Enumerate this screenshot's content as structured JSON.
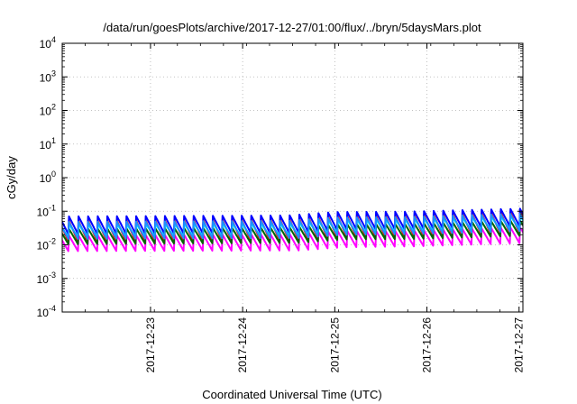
{
  "chart_data": {
    "type": "line",
    "title": "/data/run/goesPlots/archive/2017-12-27/01:00/flux/../bryn/5daysMars.plot",
    "xlabel": "Coordinated Universal Time (UTC)",
    "ylabel": "cGy/day",
    "yscale": "log",
    "ylim": [
      0.0001,
      10000
    ],
    "y_ticks": [
      {
        "base": "10",
        "exp": "-4",
        "value": 0.0001
      },
      {
        "base": "10",
        "exp": "-3",
        "value": 0.001
      },
      {
        "base": "10",
        "exp": "-2",
        "value": 0.01
      },
      {
        "base": "10",
        "exp": "-1",
        "value": 0.1
      },
      {
        "base": "10",
        "exp": "0",
        "value": 1
      },
      {
        "base": "10",
        "exp": "1",
        "value": 10
      },
      {
        "base": "10",
        "exp": "2",
        "value": 100
      },
      {
        "base": "10",
        "exp": "3",
        "value": 1000
      },
      {
        "base": "10",
        "exp": "4",
        "value": 10000
      }
    ],
    "xlim": [
      "2017-12-22 01:00",
      "2017-12-27 01:00"
    ],
    "x_ticks": [
      "2017-12-23",
      "2017-12-24",
      "2017-12-25",
      "2017-12-26",
      "2017-12-27"
    ],
    "grid": true,
    "sawtooth_period_hours": 2.5,
    "series": [
      {
        "color": "#ff00ff",
        "levels": [
          {
            "x": "2017-12-22 01:00",
            "peak": 0.019,
            "trough": 0.0065
          },
          {
            "x": "2017-12-24 12:00",
            "peak": 0.021,
            "trough": 0.0068
          },
          {
            "x": "2017-12-25 00:00",
            "peak": 0.026,
            "trough": 0.0085
          },
          {
            "x": "2017-12-25 18:00",
            "peak": 0.026,
            "trough": 0.009
          },
          {
            "x": "2017-12-27 01:00",
            "peak": 0.034,
            "trough": 0.0115
          }
        ]
      },
      {
        "color": "#ff0000",
        "levels": [
          {
            "x": "2017-12-22 01:00",
            "peak": 0.052,
            "trough": 0.0125
          },
          {
            "x": "2017-12-24 12:00",
            "peak": 0.057,
            "trough": 0.0135
          },
          {
            "x": "2017-12-25 00:00",
            "peak": 0.072,
            "trough": 0.017
          },
          {
            "x": "2017-12-25 18:00",
            "peak": 0.074,
            "trough": 0.018
          },
          {
            "x": "2017-12-27 01:00",
            "peak": 0.095,
            "trough": 0.023
          }
        ]
      },
      {
        "color": "#006400",
        "levels": [
          {
            "x": "2017-12-22 01:00",
            "peak": 0.03,
            "trough": 0.0105
          },
          {
            "x": "2017-12-24 12:00",
            "peak": 0.033,
            "trough": 0.0115
          },
          {
            "x": "2017-12-25 00:00",
            "peak": 0.041,
            "trough": 0.0145
          },
          {
            "x": "2017-12-25 18:00",
            "peak": 0.042,
            "trough": 0.015
          },
          {
            "x": "2017-12-27 01:00",
            "peak": 0.054,
            "trough": 0.019
          }
        ]
      },
      {
        "color": "#00ffff",
        "levels": [
          {
            "x": "2017-12-22 01:00",
            "peak": 0.04,
            "trough": 0.0175
          },
          {
            "x": "2017-12-24 12:00",
            "peak": 0.043,
            "trough": 0.019
          },
          {
            "x": "2017-12-25 00:00",
            "peak": 0.054,
            "trough": 0.024
          },
          {
            "x": "2017-12-25 18:00",
            "peak": 0.056,
            "trough": 0.025
          },
          {
            "x": "2017-12-27 01:00",
            "peak": 0.072,
            "trough": 0.031
          }
        ]
      },
      {
        "color": "#0000ff",
        "levels": [
          {
            "x": "2017-12-22 01:00",
            "peak": 0.07,
            "trough": 0.021
          },
          {
            "x": "2017-12-24 12:00",
            "peak": 0.075,
            "trough": 0.023
          },
          {
            "x": "2017-12-25 00:00",
            "peak": 0.095,
            "trough": 0.029
          },
          {
            "x": "2017-12-25 18:00",
            "peak": 0.097,
            "trough": 0.03
          },
          {
            "x": "2017-12-27 01:00",
            "peak": 0.12,
            "trough": 0.037
          }
        ]
      },
      {
        "color": "#1e90ff",
        "levels": [
          {
            "x": "2017-12-22 01:00",
            "peak": 0.048,
            "trough": 0.015
          },
          {
            "x": "2017-12-24 12:00",
            "peak": 0.052,
            "trough": 0.016
          },
          {
            "x": "2017-12-25 00:00",
            "peak": 0.065,
            "trough": 0.02
          },
          {
            "x": "2017-12-25 18:00",
            "peak": 0.067,
            "trough": 0.021
          },
          {
            "x": "2017-12-27 01:00",
            "peak": 0.085,
            "trough": 0.026
          }
        ]
      }
    ]
  }
}
